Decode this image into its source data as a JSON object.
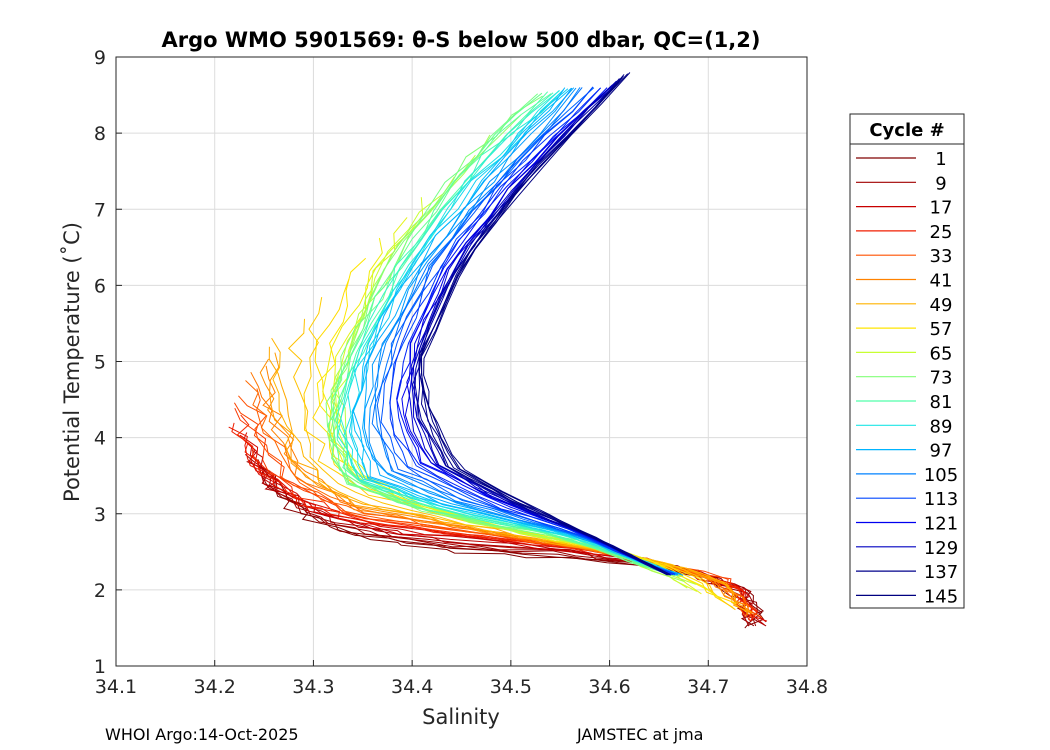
{
  "chart_data": {
    "type": "line",
    "title": "Argo WMO 5901569: θ-S below 500 dbar,  QC=(1,2)",
    "xlabel": "Salinity",
    "ylabel": "Potential Temperature (˚C)",
    "xlim": [
      34.1,
      34.8
    ],
    "ylim": [
      1,
      9
    ],
    "xticks": [
      "34.1",
      "34.2",
      "34.3",
      "34.4",
      "34.5",
      "34.6",
      "34.7",
      "34.8"
    ],
    "yticks": [
      "1",
      "2",
      "3",
      "4",
      "5",
      "6",
      "7",
      "8",
      "9"
    ],
    "grid": true,
    "legend": {
      "title": "Cycle #",
      "placement": "right",
      "entries": [
        "1",
        "9",
        "17",
        "25",
        "33",
        "41",
        "49",
        "57",
        "65",
        "73",
        "81",
        "89",
        "97",
        "105",
        "113",
        "121",
        "129",
        "137",
        "145"
      ],
      "colors": [
        "#800000",
        "#a00000",
        "#c80000",
        "#f01e00",
        "#ff5000",
        "#ff8200",
        "#ffb400",
        "#ffe600",
        "#c8ff32",
        "#82ff78",
        "#50ffaa",
        "#1ee6e6",
        "#00b4ff",
        "#0082ff",
        "#0046ff",
        "#0000f0",
        "#0000c0",
        "#00008c",
        "#000080"
      ]
    },
    "series_shape_by_cycle": [
      {
        "cycle": "1",
        "points": [
          [
            34.75,
            1.5
          ],
          [
            34.74,
            1.9
          ],
          [
            34.7,
            2.2
          ],
          [
            34.58,
            2.4
          ],
          [
            34.44,
            2.5
          ],
          [
            34.34,
            2.7
          ],
          [
            34.28,
            3.0
          ],
          [
            34.25,
            3.5
          ]
        ]
      },
      {
        "cycle": "25",
        "points": [
          [
            34.75,
            1.6
          ],
          [
            34.72,
            2.1
          ],
          [
            34.62,
            2.45
          ],
          [
            34.48,
            2.7
          ],
          [
            34.35,
            2.9
          ],
          [
            34.28,
            3.2
          ],
          [
            34.24,
            3.7
          ],
          [
            34.22,
            4.2
          ]
        ]
      },
      {
        "cycle": "49",
        "points": [
          [
            34.74,
            1.7
          ],
          [
            34.7,
            2.2
          ],
          [
            34.6,
            2.5
          ],
          [
            34.45,
            2.85
          ],
          [
            34.33,
            3.2
          ],
          [
            34.28,
            3.8
          ],
          [
            34.27,
            4.6
          ],
          [
            34.26,
            5.3
          ]
        ]
      },
      {
        "cycle": "65",
        "points": [
          [
            34.66,
            2.2
          ],
          [
            34.55,
            2.7
          ],
          [
            34.42,
            3.0
          ],
          [
            34.33,
            3.4
          ],
          [
            34.31,
            4.0
          ],
          [
            34.33,
            5.0
          ],
          [
            34.38,
            6.3
          ],
          [
            34.45,
            7.6
          ],
          [
            34.53,
            8.5
          ]
        ]
      },
      {
        "cycle": "89",
        "points": [
          [
            34.67,
            2.2
          ],
          [
            34.56,
            2.75
          ],
          [
            34.44,
            3.1
          ],
          [
            34.36,
            3.5
          ],
          [
            34.34,
            4.2
          ],
          [
            34.36,
            5.2
          ],
          [
            34.41,
            6.4
          ],
          [
            34.49,
            7.6
          ],
          [
            34.56,
            8.6
          ]
        ]
      },
      {
        "cycle": "113",
        "points": [
          [
            34.66,
            2.2
          ],
          [
            34.58,
            2.7
          ],
          [
            34.48,
            3.2
          ],
          [
            34.41,
            3.7
          ],
          [
            34.39,
            4.4
          ],
          [
            34.4,
            5.2
          ],
          [
            34.44,
            6.3
          ],
          [
            34.51,
            7.5
          ],
          [
            34.6,
            8.6
          ]
        ]
      },
      {
        "cycle": "145",
        "points": [
          [
            34.66,
            2.2
          ],
          [
            34.6,
            2.6
          ],
          [
            34.52,
            3.1
          ],
          [
            34.45,
            3.6
          ],
          [
            34.42,
            4.3
          ],
          [
            34.41,
            5.0
          ],
          [
            34.45,
            6.2
          ],
          [
            34.52,
            7.4
          ],
          [
            34.62,
            8.8
          ]
        ]
      }
    ]
  },
  "footer": {
    "left": "WHOI Argo:14-Oct-2025",
    "right": "JAMSTEC at jma"
  }
}
